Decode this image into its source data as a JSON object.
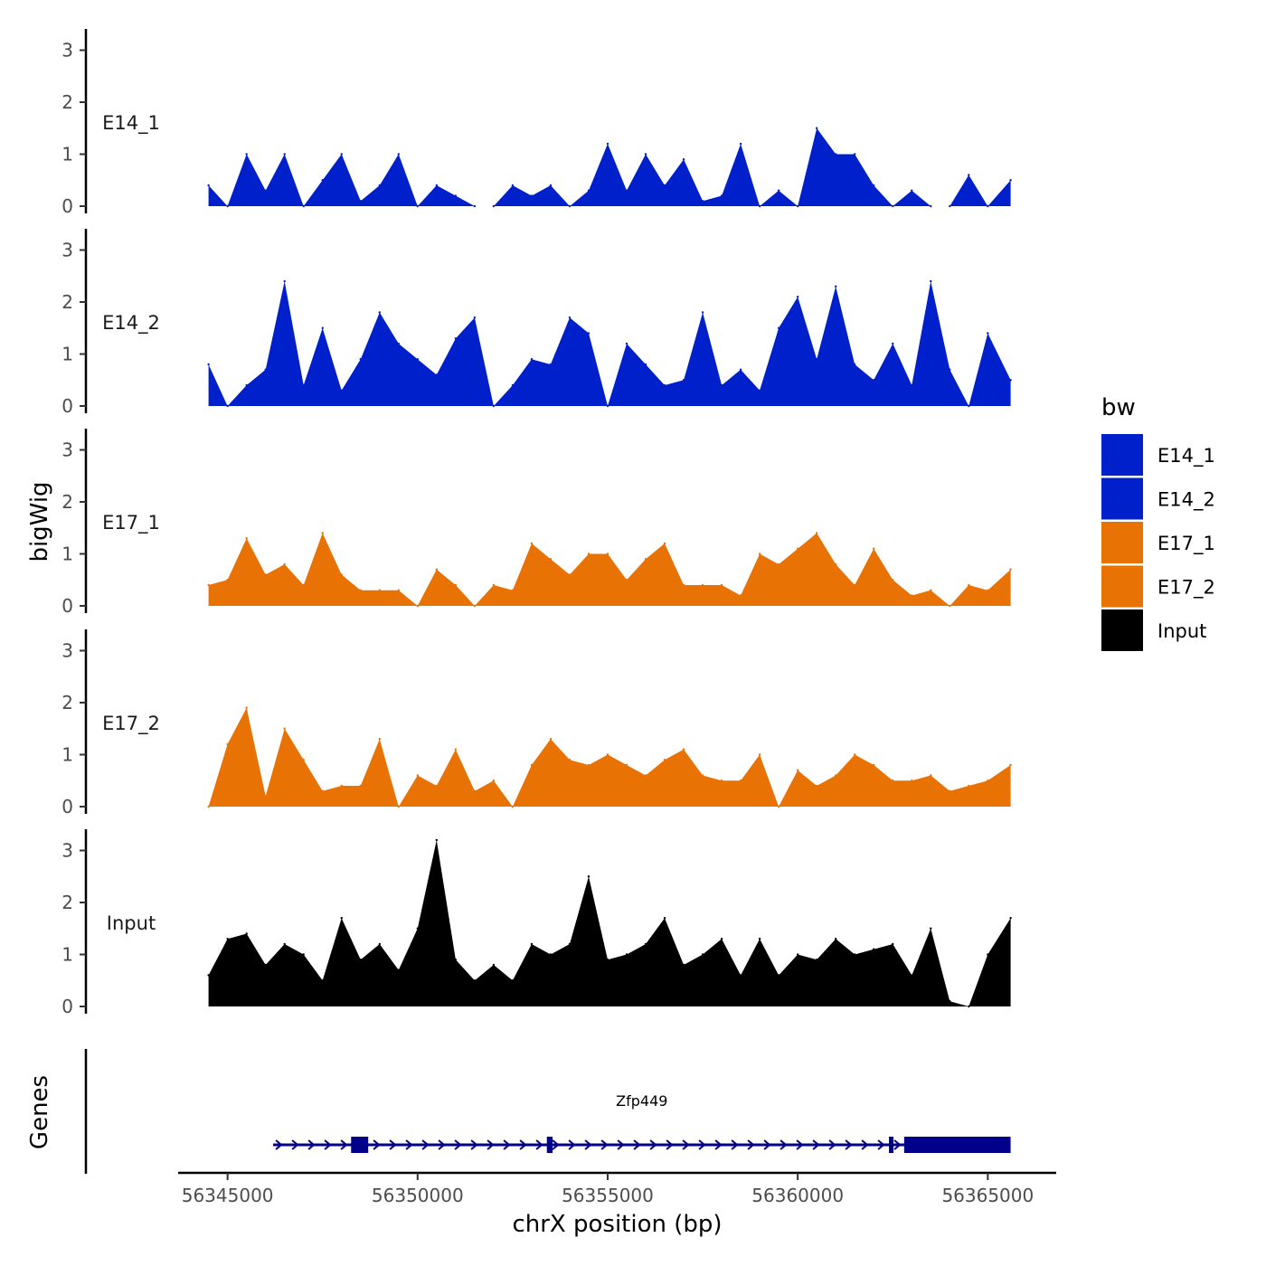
{
  "chart_data": {
    "type": "area",
    "title": "",
    "xlabel": "chrX position (bp)",
    "ylabel": "bigWig",
    "genes_label": "Genes",
    "xlim": [
      56343700,
      56366800
    ],
    "ylim": [
      0,
      3.35
    ],
    "x_ticks": [
      56345000,
      56350000,
      56355000,
      56360000,
      56365000
    ],
    "x_tick_labels": [
      "56345000",
      "56350000",
      "56355000",
      "56360000",
      "56365000"
    ],
    "y_ticks": [
      0,
      1,
      2,
      3
    ],
    "y_tick_labels": [
      "0",
      "1",
      "2",
      "3"
    ],
    "legend": {
      "title": "bw",
      "position": "right",
      "items": [
        {
          "label": "E14_1",
          "color": "#0020CC"
        },
        {
          "label": "E14_2",
          "color": "#0020CC"
        },
        {
          "label": "E17_1",
          "color": "#E87204"
        },
        {
          "label": "E17_2",
          "color": "#E87204"
        },
        {
          "label": "Input",
          "color": "#000000"
        }
      ]
    },
    "x": [
      56344500,
      56345000,
      56345500,
      56346000,
      56346500,
      56347000,
      56347500,
      56348000,
      56348500,
      56349000,
      56349500,
      56350000,
      56350500,
      56351000,
      56351500,
      56352000,
      56352500,
      56353000,
      56353500,
      56354000,
      56354500,
      56355000,
      56355500,
      56356000,
      56356500,
      56357000,
      56357500,
      56358000,
      56358500,
      56359000,
      56359500,
      56360000,
      56360500,
      56361000,
      56361500,
      56362000,
      56362500,
      56363000,
      56363500,
      56364000,
      56364500,
      56365000,
      56365600
    ],
    "series": [
      {
        "name": "E14_1",
        "color": "#0020CC",
        "values": [
          0.4,
          0.0,
          1.0,
          0.3,
          1.0,
          0.0,
          0.5,
          1.0,
          0.1,
          0.4,
          1.0,
          0.0,
          0.4,
          0.2,
          0.0,
          0.0,
          0.4,
          0.2,
          0.4,
          0.0,
          0.3,
          1.2,
          0.3,
          1.0,
          0.4,
          0.9,
          0.1,
          0.2,
          1.2,
          0.0,
          0.3,
          0.0,
          1.5,
          1.0,
          1.0,
          0.4,
          0.0,
          0.3,
          0.0,
          0.0,
          0.6,
          0.0,
          0.5
        ]
      },
      {
        "name": "E14_2",
        "color": "#0020CC",
        "values": [
          0.8,
          0.0,
          0.4,
          0.7,
          2.4,
          0.4,
          1.5,
          0.3,
          0.9,
          1.8,
          1.2,
          0.9,
          0.6,
          1.3,
          1.7,
          0.0,
          0.4,
          0.9,
          0.8,
          1.7,
          1.4,
          0.0,
          1.2,
          0.8,
          0.4,
          0.5,
          1.8,
          0.4,
          0.7,
          0.3,
          1.5,
          2.1,
          0.9,
          2.3,
          0.8,
          0.5,
          1.2,
          0.4,
          2.4,
          0.7,
          0.0,
          1.4,
          0.5
        ]
      },
      {
        "name": "E17_1",
        "color": "#E87204",
        "values": [
          0.4,
          0.5,
          1.3,
          0.6,
          0.8,
          0.4,
          1.4,
          0.6,
          0.3,
          0.3,
          0.3,
          0.0,
          0.7,
          0.4,
          0.0,
          0.4,
          0.3,
          1.2,
          0.9,
          0.6,
          1.0,
          1.0,
          0.5,
          0.9,
          1.2,
          0.4,
          0.4,
          0.4,
          0.2,
          1.0,
          0.8,
          1.1,
          1.4,
          0.8,
          0.4,
          1.1,
          0.5,
          0.2,
          0.3,
          0.0,
          0.4,
          0.3,
          0.7
        ]
      },
      {
        "name": "E17_2",
        "color": "#E87204",
        "values": [
          0.0,
          1.2,
          1.9,
          0.2,
          1.5,
          0.9,
          0.3,
          0.4,
          0.4,
          1.3,
          0.0,
          0.6,
          0.4,
          1.1,
          0.3,
          0.5,
          0.0,
          0.8,
          1.3,
          0.9,
          0.8,
          1.0,
          0.8,
          0.6,
          0.9,
          1.1,
          0.6,
          0.5,
          0.5,
          1.0,
          0.0,
          0.7,
          0.4,
          0.6,
          1.0,
          0.8,
          0.5,
          0.5,
          0.6,
          0.3,
          0.4,
          0.5,
          0.8
        ]
      },
      {
        "name": "Input",
        "color": "#000000",
        "values": [
          0.6,
          1.3,
          1.4,
          0.8,
          1.2,
          1.0,
          0.5,
          1.7,
          0.9,
          1.2,
          0.7,
          1.5,
          3.2,
          0.9,
          0.5,
          0.8,
          0.5,
          1.2,
          1.0,
          1.2,
          2.5,
          0.9,
          1.0,
          1.2,
          1.7,
          0.8,
          1.0,
          1.3,
          0.6,
          1.3,
          0.6,
          1.0,
          0.9,
          1.3,
          1.0,
          1.1,
          1.2,
          0.6,
          1.5,
          0.1,
          0.0,
          1.0,
          1.7
        ]
      }
    ],
    "genes_track": {
      "gene_name": "Zfp449",
      "color": "#00008B",
      "strand": "+",
      "start": 56346200,
      "end": 56365600,
      "exons": [
        {
          "start": 56348250,
          "end": 56348700
        },
        {
          "start": 56353400,
          "end": 56353550
        },
        {
          "start": 56362400,
          "end": 56362520
        },
        {
          "start": 56362800,
          "end": 56365600
        }
      ]
    }
  }
}
